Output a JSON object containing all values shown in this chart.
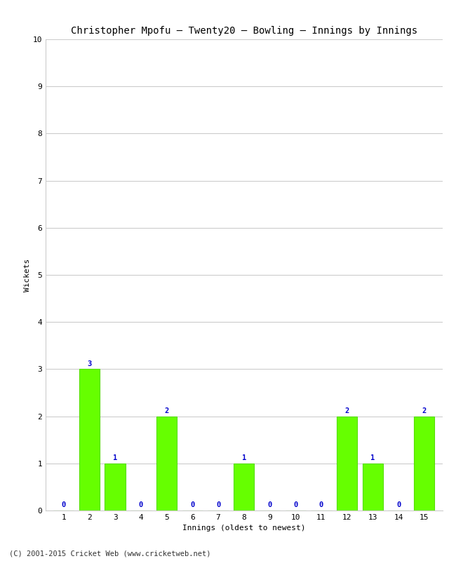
{
  "title": "Christopher Mpofu – Twenty20 – Bowling – Innings by Innings",
  "xlabel": "Innings (oldest to newest)",
  "ylabel": "Wickets",
  "categories": [
    1,
    2,
    3,
    4,
    5,
    6,
    7,
    8,
    9,
    10,
    11,
    12,
    13,
    14,
    15
  ],
  "values": [
    0,
    3,
    1,
    0,
    2,
    0,
    0,
    1,
    0,
    0,
    0,
    2,
    1,
    0,
    2
  ],
  "bar_color": "#66ff00",
  "bar_edge_color": "#55dd00",
  "label_color": "#0000cc",
  "title_color": "#000000",
  "ylim": [
    0,
    10
  ],
  "yticks": [
    0,
    1,
    2,
    3,
    4,
    5,
    6,
    7,
    8,
    9,
    10
  ],
  "background_color": "#ffffff",
  "plot_bg_color": "#ffffff",
  "footer": "(C) 2001-2015 Cricket Web (www.cricketweb.net)",
  "title_fontsize": 10,
  "label_fontsize": 8,
  "tick_fontsize": 8,
  "footer_fontsize": 7.5,
  "bar_label_fontsize": 7.5
}
